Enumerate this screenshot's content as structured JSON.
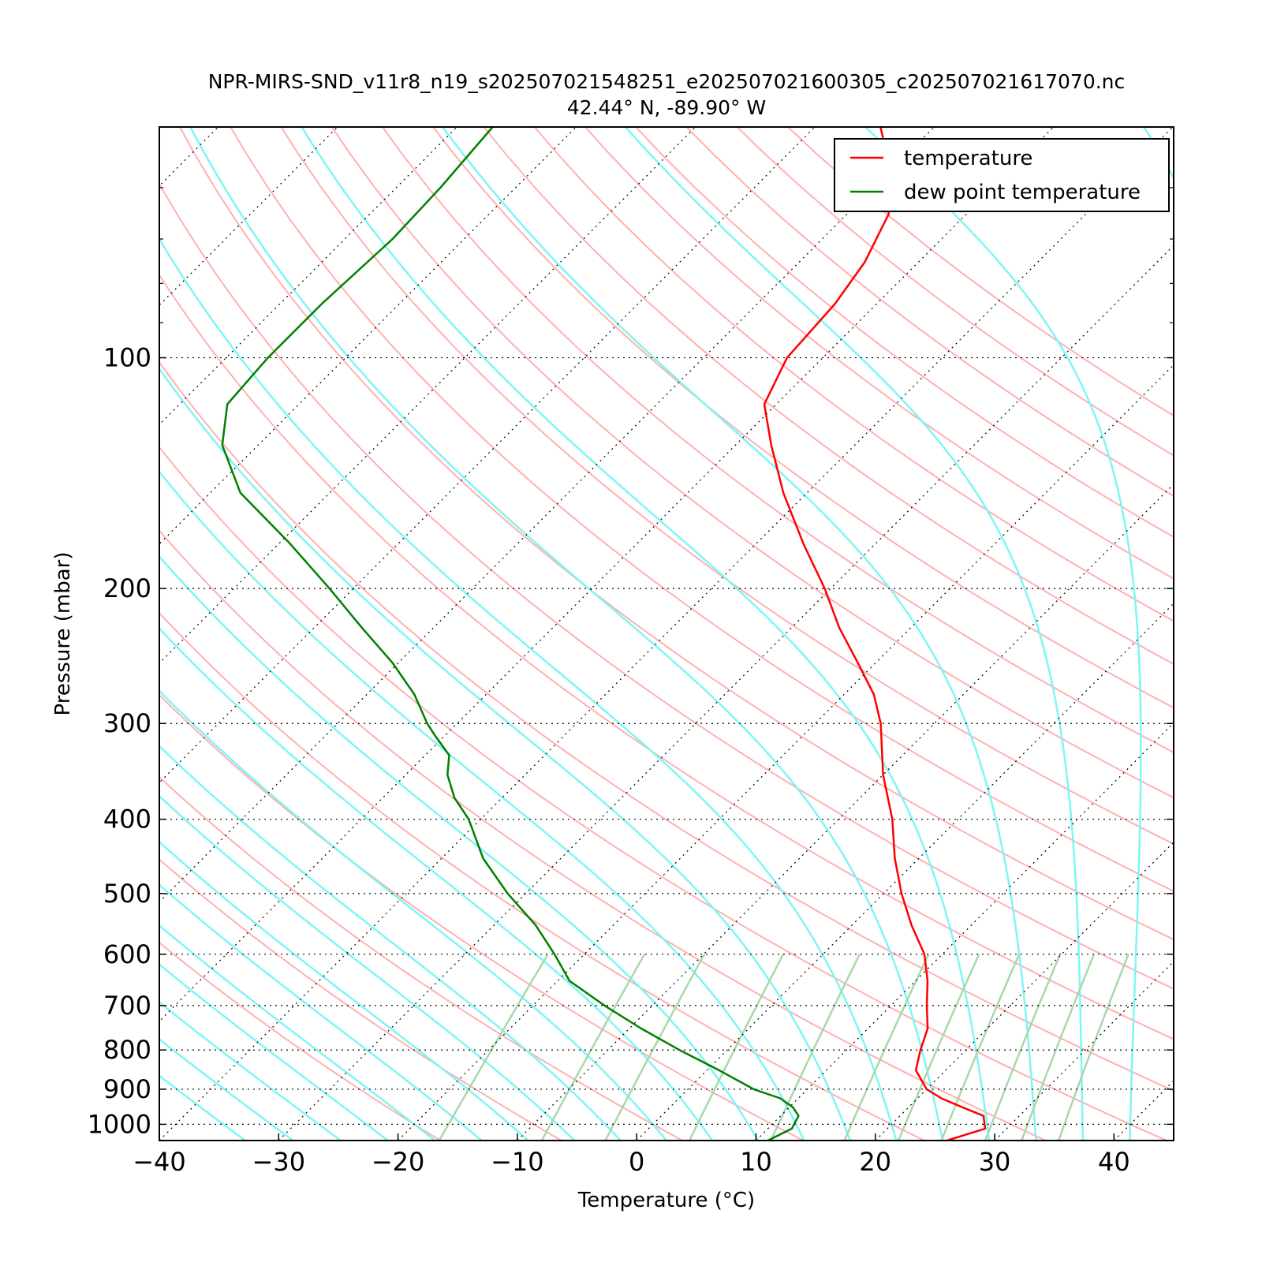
{
  "chart_data": {
    "type": "line",
    "title": "NPR-MIRS-SND_v11r8_n19_s202507021548251_e202507021600305_c202507021617070.nc",
    "subtitle": "42.44° N, -89.90° W",
    "xlabel": "Temperature (°C)",
    "ylabel": "Pressure (mbar)",
    "xlim": [
      -40,
      45
    ],
    "ylim": [
      1050,
      50
    ],
    "yscale": "log",
    "x_ticks": [
      -40,
      -30,
      -20,
      -10,
      0,
      10,
      20,
      30,
      40
    ],
    "x_tick_labels": [
      "−40",
      "−30",
      "−20",
      "−10",
      "0",
      "10",
      "20",
      "30",
      "40"
    ],
    "y_ticks": [
      100,
      200,
      300,
      400,
      500,
      600,
      700,
      800,
      900,
      1000
    ],
    "y_tick_labels": [
      "100",
      "200",
      "300",
      "400",
      "500",
      "600",
      "700",
      "800",
      "900",
      "1000"
    ],
    "skew": true,
    "grid": "dotted",
    "legend_position": "top-right",
    "series": [
      {
        "name": "temperature",
        "color": "#ff0000",
        "points": [
          [
            1050,
            26.0
          ],
          [
            1013,
            28.2
          ],
          [
            975,
            27.0
          ],
          [
            950,
            24.5
          ],
          [
            925,
            22.0
          ],
          [
            900,
            20.0
          ],
          [
            850,
            17.5
          ],
          [
            800,
            16.2
          ],
          [
            750,
            15.0
          ],
          [
            700,
            13.0
          ],
          [
            650,
            11.0
          ],
          [
            600,
            8.5
          ],
          [
            550,
            5.0
          ],
          [
            500,
            1.5
          ],
          [
            450,
            -2.0
          ],
          [
            400,
            -5.5
          ],
          [
            350,
            -10.0
          ],
          [
            300,
            -14.5
          ],
          [
            275,
            -17.5
          ],
          [
            250,
            -21.5
          ],
          [
            225,
            -26.0
          ],
          [
            200,
            -30.5
          ],
          [
            175,
            -36.0
          ],
          [
            150,
            -42.0
          ],
          [
            130,
            -47.0
          ],
          [
            115,
            -51.0
          ],
          [
            100,
            -53.0
          ],
          [
            85,
            -53.5
          ],
          [
            75,
            -54.5
          ],
          [
            65,
            -56.5
          ],
          [
            57,
            -60.0
          ],
          [
            50,
            -64.5
          ]
        ]
      },
      {
        "name": "dew point temperature",
        "color": "#008000",
        "points": [
          [
            1050,
            11.0
          ],
          [
            1013,
            12.0
          ],
          [
            975,
            11.5
          ],
          [
            950,
            10.3
          ],
          [
            925,
            8.5
          ],
          [
            900,
            5.5
          ],
          [
            850,
            1.0
          ],
          [
            800,
            -4.0
          ],
          [
            750,
            -9.0
          ],
          [
            700,
            -14.0
          ],
          [
            650,
            -19.0
          ],
          [
            600,
            -22.5
          ],
          [
            550,
            -26.5
          ],
          [
            500,
            -31.5
          ],
          [
            450,
            -36.5
          ],
          [
            400,
            -41.0
          ],
          [
            375,
            -44.0
          ],
          [
            350,
            -46.5
          ],
          [
            330,
            -48.0
          ],
          [
            310,
            -51.0
          ],
          [
            300,
            -52.5
          ],
          [
            275,
            -56.0
          ],
          [
            250,
            -60.5
          ],
          [
            225,
            -66.0
          ],
          [
            200,
            -72.0
          ],
          [
            175,
            -79.0
          ],
          [
            150,
            -87.5
          ],
          [
            130,
            -93.0
          ],
          [
            115,
            -96.0
          ],
          [
            100,
            -96.5
          ],
          [
            85,
            -96.5
          ],
          [
            70,
            -96.0
          ],
          [
            60,
            -96.3
          ],
          [
            50,
            -97.0
          ]
        ]
      }
    ]
  }
}
